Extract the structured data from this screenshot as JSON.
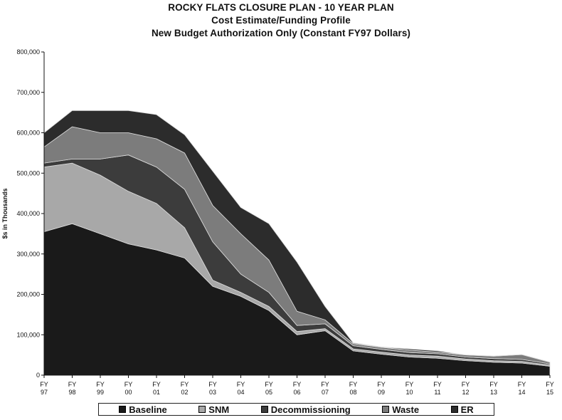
{
  "chart_data": {
    "type": "area",
    "stacked": true,
    "title": "ROCKY FLATS CLOSURE PLAN - 10 YEAR PLAN",
    "subtitle_1": "Cost Estimate/Funding Profile",
    "subtitle_2": "New Budget Authorization Only (Constant FY97 Dollars)",
    "xlabel": "",
    "ylabel": "$s in Thousands",
    "ylim": [
      0,
      800000
    ],
    "ytick_labels": [
      "0",
      "100,000",
      "200,000",
      "300,000",
      "400,000",
      "500,000",
      "600,000",
      "700,000",
      "800,000"
    ],
    "categories": [
      {
        "top": "FY",
        "bottom": "97"
      },
      {
        "top": "FY",
        "bottom": "98"
      },
      {
        "top": "FY",
        "bottom": "99"
      },
      {
        "top": "FY",
        "bottom": "00"
      },
      {
        "top": "FY",
        "bottom": "01"
      },
      {
        "top": "FY",
        "bottom": "02"
      },
      {
        "top": "FY",
        "bottom": "03"
      },
      {
        "top": "FY",
        "bottom": "04"
      },
      {
        "top": "FY",
        "bottom": "05"
      },
      {
        "top": "FY",
        "bottom": "06"
      },
      {
        "top": "FY",
        "bottom": "07"
      },
      {
        "top": "FY",
        "bottom": "08"
      },
      {
        "top": "FY",
        "bottom": "09"
      },
      {
        "top": "FY",
        "bottom": "10"
      },
      {
        "top": "FY",
        "bottom": "11"
      },
      {
        "top": "FY",
        "bottom": "12"
      },
      {
        "top": "FY",
        "bottom": "13"
      },
      {
        "top": "FY",
        "bottom": "14"
      },
      {
        "top": "FY",
        "bottom": "15"
      }
    ],
    "series": [
      {
        "name": "Baseline",
        "color": "#1a1a1a",
        "values": [
          355000,
          375000,
          350000,
          325000,
          310000,
          290000,
          220000,
          195000,
          160000,
          100000,
          110000,
          60000,
          52000,
          45000,
          42000,
          36000,
          32000,
          30000,
          22000
        ]
      },
      {
        "name": "SNM",
        "color": "#a8a8a8",
        "values": [
          160000,
          150000,
          145000,
          130000,
          115000,
          75000,
          15000,
          10000,
          10000,
          8000,
          5000,
          5000,
          5000,
          5000,
          5000,
          4000,
          4000,
          4000,
          3000
        ]
      },
      {
        "name": "Decommissioning",
        "color": "#3c3c3c",
        "values": [
          10000,
          10000,
          40000,
          90000,
          90000,
          95000,
          95000,
          45000,
          35000,
          15000,
          12000,
          8000,
          7000,
          6000,
          6000,
          5000,
          5000,
          5000,
          3000
        ]
      },
      {
        "name": "Waste",
        "color": "#7c7c7c",
        "values": [
          40000,
          80000,
          65000,
          55000,
          70000,
          90000,
          90000,
          100000,
          80000,
          35000,
          10000,
          5000,
          5000,
          6000,
          4000,
          5000,
          6000,
          12000,
          4000
        ]
      },
      {
        "name": "ER",
        "color": "#2c2c2c",
        "values": [
          35000,
          40000,
          55000,
          55000,
          60000,
          45000,
          85000,
          65000,
          90000,
          122000,
          33000,
          2000,
          1000,
          3000,
          3000,
          0,
          0,
          0,
          0
        ]
      }
    ],
    "grid": false,
    "legend_position": "bottom"
  }
}
